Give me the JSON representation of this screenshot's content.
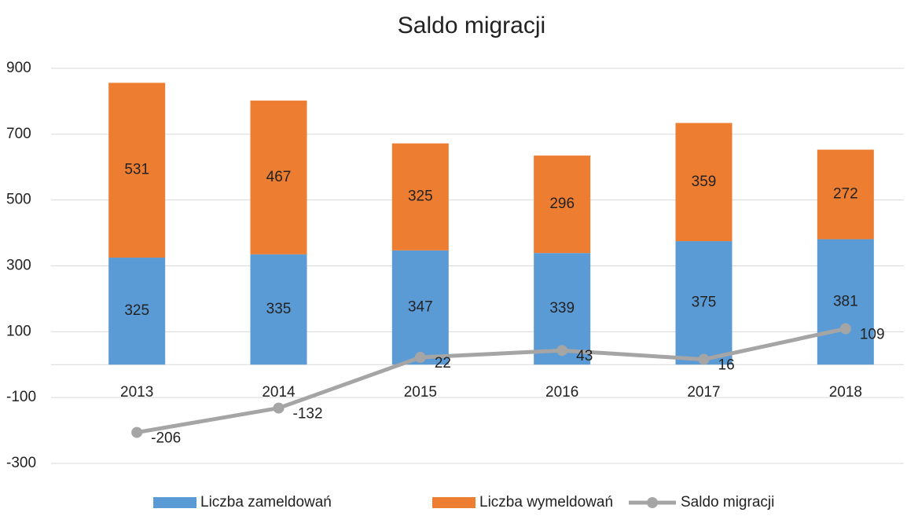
{
  "chart_data": {
    "type": "bar",
    "stacked": true,
    "title": "Saldo migracji",
    "categories": [
      "2013",
      "2014",
      "2015",
      "2016",
      "2017",
      "2018"
    ],
    "series": [
      {
        "name": "Liczba zameldowań",
        "color": "#5b9bd5",
        "values": [
          325,
          335,
          347,
          339,
          375,
          381
        ]
      },
      {
        "name": "Liczba wymeldowań",
        "color": "#ed7d31",
        "values": [
          531,
          467,
          325,
          296,
          359,
          272
        ]
      },
      {
        "name": "Saldo migracji",
        "type": "line",
        "color": "#a5a5a5",
        "values": [
          -206,
          -132,
          22,
          43,
          16,
          109
        ]
      }
    ],
    "ylim": [
      -300,
      900
    ],
    "yticks": [
      -300,
      -100,
      100,
      300,
      500,
      700,
      900
    ],
    "grid": true,
    "legend": "bottom"
  }
}
